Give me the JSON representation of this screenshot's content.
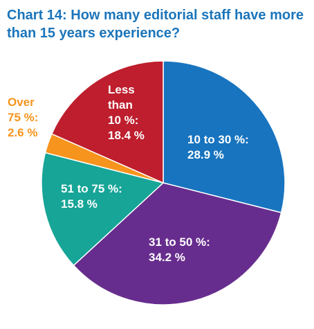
{
  "chart_data": {
    "type": "pie",
    "title": "Chart 14: How many editorial staff have more than 15 years experience?",
    "slices": [
      {
        "label": "10 to 30 %",
        "value": 28.9,
        "value_text": "28.9 %",
        "color": "#1874bf",
        "text_color": "#ffffff"
      },
      {
        "label": "31 to 50 %",
        "value": 34.2,
        "value_text": "34.2 %",
        "color": "#672d8e",
        "text_color": "#ffffff"
      },
      {
        "label": "51 to 75 %",
        "value": 15.8,
        "value_text": "15.8 %",
        "color": "#16a597",
        "text_color": "#ffffff"
      },
      {
        "label": "Over 75 %",
        "value": 2.6,
        "value_text": "2.6 %",
        "color": "#f7941d",
        "text_color": "#f7941d"
      },
      {
        "label": "Less than 10 %",
        "value": 18.4,
        "value_text": "18.4 %",
        "color": "#be1e2d",
        "text_color": "#ffffff"
      }
    ],
    "label_lines": [
      [
        "10 to 30 %:",
        "28.9 %"
      ],
      [
        "31 to 50 %:",
        "34.2 %"
      ],
      [
        "51 to 75 %:",
        "15.8 %"
      ],
      [
        "Over",
        "75 %:",
        "2.6 %"
      ],
      [
        "Less",
        "than",
        "10 %:",
        "18.4 %"
      ]
    ],
    "start_angle_deg": 0,
    "direction": "clockwise"
  }
}
